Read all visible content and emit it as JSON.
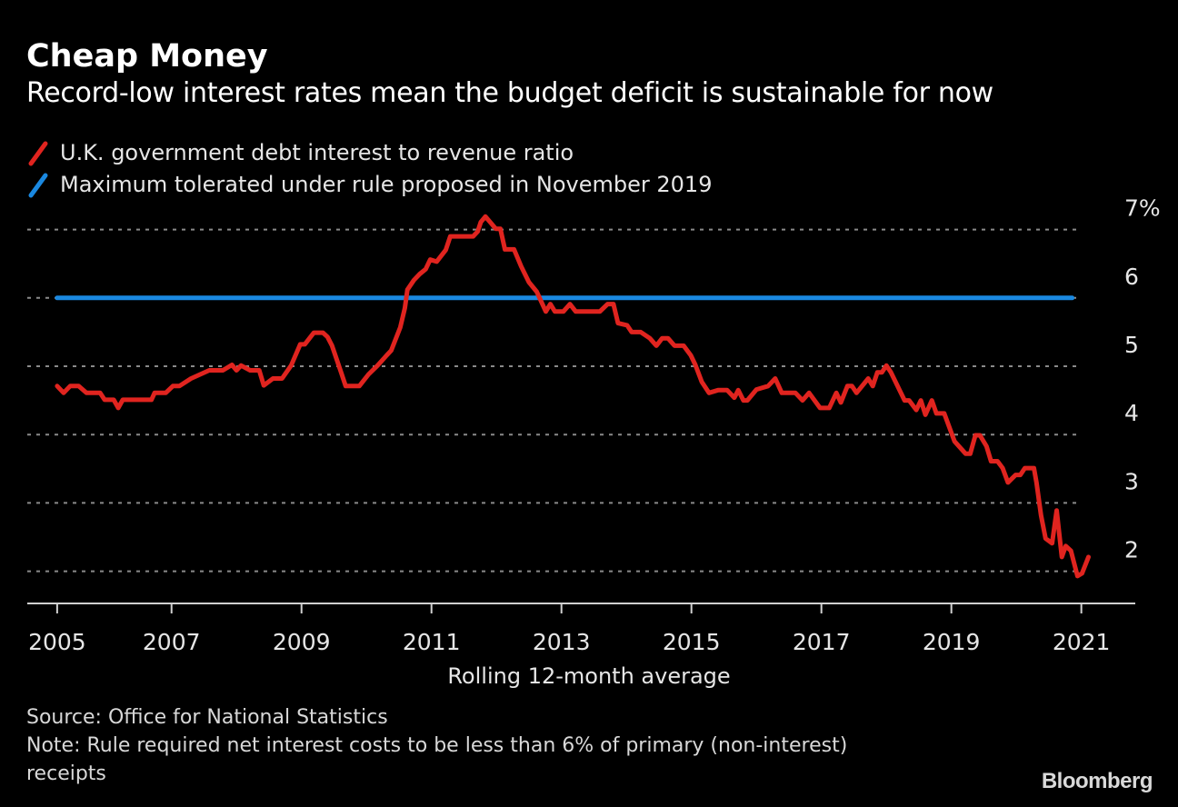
{
  "header": {
    "title": "Cheap Money",
    "subtitle": "Record-low interest rates mean the budget deficit is sustainable for now"
  },
  "legend": [
    {
      "label": "U.K. government debt interest to revenue ratio",
      "color": "#e0241f",
      "icon": "diagonal-line-icon"
    },
    {
      "label": "Maximum tolerated under rule proposed in November 2019",
      "color": "#1a88e0",
      "icon": "diagonal-line-icon"
    }
  ],
  "footer": {
    "source": "Source: Office for National Statistics",
    "note": "Note: Rule required net interest costs to be less than 6% of primary (non-interest) receipts",
    "brand": "Bloomberg"
  },
  "chart_data": {
    "type": "line",
    "title": "Cheap Money",
    "subtitle": "Record-low interest rates mean the budget deficit is sustainable for now",
    "xlabel": "Rolling 12-month average",
    "ylabel": "",
    "xlim": [
      2004.78,
      2021.83
    ],
    "ylim": [
      1.53,
      7.3
    ],
    "x_ticks": [
      2005,
      2007,
      2009,
      2011,
      2013,
      2015,
      2017,
      2019,
      2021
    ],
    "x_tick_positions": [
      2005.24,
      2007.0,
      2009.0,
      2011.0,
      2013.0,
      2015.0,
      2017.0,
      2019.0,
      2021.0
    ],
    "y_ticks": [
      2,
      3,
      4,
      5,
      6,
      7
    ],
    "y_tick_labels": [
      "2",
      "3",
      "4",
      "5",
      "6",
      "7%"
    ],
    "y_axis_side": "right",
    "grid": "horizontal-dotted",
    "legend_placement": "top-left",
    "series": [
      {
        "name": "U.K. government debt interest to revenue ratio",
        "color": "#e0241f",
        "x": [
          2005.24,
          2005.34,
          2005.44,
          2005.57,
          2005.69,
          2005.9,
          2005.97,
          2006.11,
          2006.18,
          2006.25,
          2006.69,
          2006.74,
          2006.91,
          2007.02,
          2007.12,
          2007.3,
          2007.58,
          2007.79,
          2007.93,
          2008.0,
          2008.07,
          2008.21,
          2008.35,
          2008.42,
          2008.56,
          2008.7,
          2008.84,
          2008.98,
          2009.05,
          2009.19,
          2009.33,
          2009.4,
          2009.47,
          2009.61,
          2009.68,
          2009.89,
          2010.03,
          2010.17,
          2010.31,
          2010.38,
          2010.52,
          2010.59,
          2010.63,
          2010.73,
          2010.82,
          2010.91,
          2010.98,
          2011.08,
          2011.22,
          2011.29,
          2011.64,
          2011.71,
          2011.76,
          2011.83,
          2011.99,
          2012.06,
          2012.13,
          2012.27,
          2012.38,
          2012.5,
          2012.62,
          2012.76,
          2012.83,
          2012.9,
          2013.03,
          2013.13,
          2013.22,
          2013.59,
          2013.71,
          2013.8,
          2013.87,
          2014.01,
          2014.08,
          2014.22,
          2014.36,
          2014.46,
          2014.55,
          2014.64,
          2014.74,
          2014.88,
          2014.99,
          2015.06,
          2015.16,
          2015.27,
          2015.41,
          2015.55,
          2015.66,
          2015.72,
          2015.8,
          2015.86,
          2016.0,
          2016.18,
          2016.29,
          2016.39,
          2016.6,
          2016.71,
          2016.81,
          2016.98,
          2017.12,
          2017.23,
          2017.3,
          2017.4,
          2017.47,
          2017.54,
          2017.72,
          2017.79,
          2017.86,
          2017.93,
          2018.0,
          2018.07,
          2018.28,
          2018.35,
          2018.46,
          2018.53,
          2018.6,
          2018.7,
          2018.77,
          2018.89,
          2019.05,
          2019.22,
          2019.29,
          2019.37,
          2019.44,
          2019.54,
          2019.61,
          2019.71,
          2019.79,
          2019.87,
          2019.99,
          2020.06,
          2020.13,
          2020.27,
          2020.31,
          2020.38,
          2020.45,
          2020.55,
          2020.62,
          2020.7,
          2020.76,
          2020.84,
          2020.94,
          2021.01,
          2021.11
        ],
        "values": [
          4.71,
          4.61,
          4.71,
          4.71,
          4.61,
          4.61,
          4.51,
          4.51,
          4.39,
          4.51,
          4.51,
          4.61,
          4.61,
          4.71,
          4.71,
          4.82,
          4.94,
          4.94,
          5.02,
          4.94,
          5.01,
          4.94,
          4.94,
          4.72,
          4.82,
          4.82,
          5.01,
          5.32,
          5.32,
          5.49,
          5.49,
          5.43,
          5.3,
          4.91,
          4.71,
          4.71,
          4.88,
          5.01,
          5.16,
          5.23,
          5.57,
          5.85,
          6.12,
          6.26,
          6.35,
          6.42,
          6.56,
          6.53,
          6.7,
          6.9,
          6.9,
          6.97,
          7.11,
          7.19,
          7.01,
          7.01,
          6.71,
          6.71,
          6.46,
          6.23,
          6.09,
          5.8,
          5.91,
          5.8,
          5.8,
          5.91,
          5.8,
          5.8,
          5.91,
          5.91,
          5.63,
          5.6,
          5.5,
          5.5,
          5.41,
          5.3,
          5.41,
          5.41,
          5.3,
          5.3,
          5.16,
          5.02,
          4.77,
          4.61,
          4.65,
          4.65,
          4.54,
          4.65,
          4.5,
          4.5,
          4.66,
          4.71,
          4.82,
          4.61,
          4.61,
          4.5,
          4.61,
          4.39,
          4.39,
          4.61,
          4.47,
          4.71,
          4.71,
          4.61,
          4.82,
          4.71,
          4.91,
          4.91,
          5.01,
          4.91,
          4.5,
          4.5,
          4.36,
          4.5,
          4.29,
          4.5,
          4.31,
          4.31,
          3.9,
          3.72,
          3.72,
          3.99,
          3.99,
          3.83,
          3.61,
          3.61,
          3.51,
          3.3,
          3.41,
          3.41,
          3.51,
          3.51,
          3.3,
          2.82,
          2.48,
          2.41,
          2.89,
          2.21,
          2.37,
          2.3,
          1.93,
          1.97,
          2.21
        ]
      },
      {
        "name": "Maximum tolerated under rule proposed in November 2019",
        "color": "#1a88e0",
        "x": [
          2005.24,
          2020.86
        ],
        "values": [
          6.0,
          6.0
        ]
      }
    ]
  }
}
